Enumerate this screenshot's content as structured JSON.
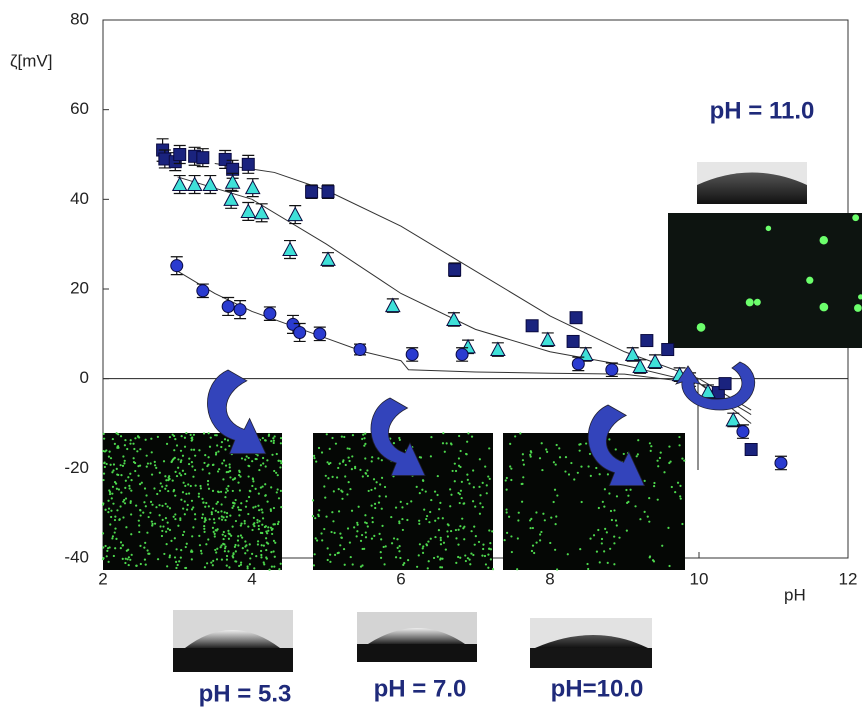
{
  "chart_data": {
    "type": "scatter",
    "x_label": "pH",
    "y_label": "ζ[mV]",
    "xlim": [
      2,
      12
    ],
    "ylim": [
      -40,
      80
    ],
    "xticks": [
      2,
      4,
      6,
      8,
      10,
      12
    ],
    "yticks": [
      -40,
      -20,
      0,
      20,
      40,
      60,
      80
    ],
    "annotations": [
      "pH = 11.0",
      "pH = 5.3",
      "pH = 7.0",
      "pH=10.0"
    ],
    "series": [
      {
        "marker": "square",
        "color": "#1a237e",
        "x": [
          2.8,
          2.83,
          2.97,
          3.03,
          3.23,
          3.34,
          3.64,
          3.74,
          3.95,
          4.8,
          5.02,
          6.72,
          7.76,
          8.35,
          8.31,
          9.3,
          9.58,
          10.26,
          10.35,
          10.7
        ],
        "values": [
          51,
          49,
          48.4,
          50,
          49.6,
          49.3,
          48.9,
          46.7,
          47.8,
          41.7,
          41.7,
          24.3,
          11.8,
          13.6,
          8.3,
          8.5,
          6.5,
          -3.1,
          -1.1,
          -15.8
        ],
        "errors": [
          2.5,
          2,
          2,
          2,
          2,
          2,
          2,
          2,
          2,
          1.5,
          1.5,
          1.5,
          1.2,
          1.2,
          1.2,
          1.2,
          1.2,
          1.2,
          1.2,
          1.2
        ]
      },
      {
        "marker": "triangle",
        "color": "#3fe0d8",
        "x": [
          3.03,
          3.23,
          3.44,
          3.74,
          3.72,
          3.95,
          4.01,
          4.13,
          4.58,
          4.51,
          5.02,
          5.89,
          6.71,
          6.9,
          7.3,
          7.97,
          8.48,
          9.11,
          9.21,
          9.41,
          9.74,
          10.12,
          10.46
        ],
        "values": [
          43.3,
          43.3,
          43.3,
          43.8,
          40,
          37.3,
          42.6,
          37,
          36.6,
          28.8,
          26.6,
          16.3,
          13.2,
          7.1,
          6.5,
          8.7,
          5.4,
          5.4,
          2.7,
          3.8,
          0.9,
          -2.9,
          -9.2
        ],
        "errors": [
          2,
          2,
          2,
          2,
          2,
          2,
          2,
          2,
          2,
          2,
          1.5,
          1.5,
          1.5,
          1.5,
          1.5,
          1.5,
          1.5,
          1.5,
          1.5,
          1.5,
          1.5,
          1.5,
          1.5
        ]
      },
      {
        "marker": "circle",
        "color": "#2a3bd0",
        "x": [
          2.99,
          3.34,
          3.68,
          3.84,
          4.24,
          4.55,
          4.64,
          4.91,
          5.45,
          6.15,
          6.82,
          8.38,
          8.83,
          9.88,
          10.59,
          11.1
        ],
        "values": [
          25.2,
          19.6,
          16.1,
          15.4,
          14.5,
          12.1,
          10.3,
          10,
          6.5,
          5.4,
          5.4,
          3.3,
          2,
          -0.2,
          -11.8,
          -18.8
        ],
        "errors": [
          2,
          1.5,
          2,
          2,
          1.5,
          2,
          2,
          1.5,
          1.2,
          1.5,
          1.5,
          1.5,
          1.5,
          1.5,
          1.5,
          1.5
        ]
      }
    ],
    "fit_lines": [
      {
        "x": [
          3.5,
          4.3,
          5,
          6,
          7,
          8,
          9,
          10,
          10.7
        ],
        "values": [
          48,
          46,
          42,
          34,
          24,
          14,
          6,
          0,
          -7
        ]
      },
      {
        "x": [
          3,
          4,
          5,
          6,
          7,
          8,
          9,
          10,
          10.7
        ],
        "values": [
          45,
          40,
          30,
          19,
          11,
          6,
          3,
          -1,
          -8
        ]
      },
      {
        "x": [
          3,
          3.5,
          4,
          5,
          5.5,
          6,
          6.1,
          7,
          8,
          9,
          10,
          10.7
        ],
        "values": [
          24,
          19,
          15,
          9,
          6,
          4,
          2,
          1.5,
          1.2,
          1,
          -1,
          -10
        ]
      }
    ]
  }
}
